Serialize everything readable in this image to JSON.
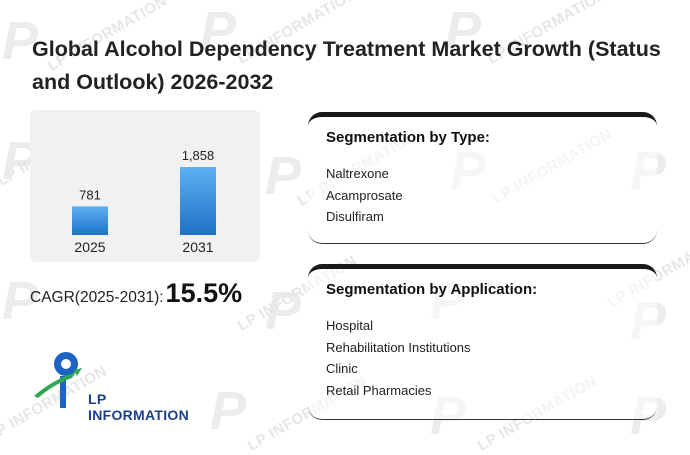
{
  "page": {
    "title": "Global Alcohol Dependency Treatment Market Growth (Status and Outlook) 2026-2032"
  },
  "watermark": {
    "text": "LP INFORMATION"
  },
  "chart_data": {
    "type": "bar",
    "categories": [
      "2025",
      "2031"
    ],
    "values": [
      781,
      1858
    ],
    "value_labels": [
      "781",
      "1,858"
    ],
    "ylim": [
      0,
      1858
    ],
    "title": "",
    "xlabel": "",
    "ylabel": "",
    "grid": false,
    "colors": {
      "bar_top": "#5ab0f0",
      "bar_bottom": "#1f72c8"
    }
  },
  "cagr": {
    "label": "CAGR(2025-2031):",
    "value": "15.5%"
  },
  "logo": {
    "text": "LP INFORMATION",
    "icon": "lp-information-logo-icon"
  },
  "segmentation_type": {
    "title": "Segmentation by Type:",
    "items": [
      "Naltrexone",
      "Acamprosate",
      "Disulfiram"
    ]
  },
  "segmentation_application": {
    "title": "Segmentation by Application:",
    "items": [
      "Hospital",
      "Rehabilitation Institutions",
      "Clinic",
      "Retail Pharmacies"
    ]
  }
}
